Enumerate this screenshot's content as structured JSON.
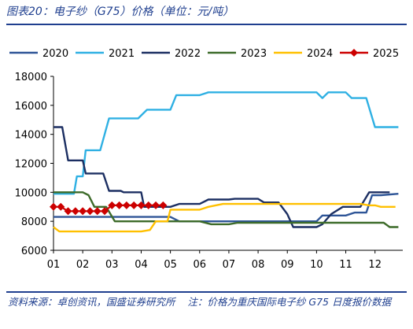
{
  "figure_title": "图表20：电子纱（G75）价格（单位：元/吨）",
  "source_text": "资料来源：卓创资讯，国盛证券研究所",
  "note_text": "注：价格为重庆国际电子纱 G75 日度报价数据",
  "chart_data": {
    "type": "line",
    "title": "图表20：电子纱（G75）价格（单位：元/吨）",
    "xlabel": "",
    "ylabel": "",
    "categories": [
      "01",
      "02",
      "03",
      "04",
      "05",
      "06",
      "07",
      "08",
      "09",
      "10",
      "11",
      "12"
    ],
    "x_tick_labels": [
      "01",
      "02",
      "03",
      "04",
      "05",
      "06",
      "07",
      "08",
      "09",
      "10",
      "11",
      "12"
    ],
    "ylim": [
      6000,
      18000
    ],
    "y_ticks": [
      6000,
      8000,
      10000,
      12000,
      14000,
      16000,
      18000
    ],
    "grid": false,
    "legend_position": "top",
    "series": [
      {
        "name": "2020",
        "color": "#2e5597",
        "marker": "none",
        "points": [
          [
            1,
            8300
          ],
          [
            1.5,
            8300
          ],
          [
            2,
            8300
          ],
          [
            3,
            8300
          ],
          [
            3.5,
            8300
          ],
          [
            4,
            8300
          ],
          [
            4.6,
            8300
          ],
          [
            5,
            8300
          ],
          [
            5.3,
            8000
          ],
          [
            6,
            8000
          ],
          [
            7,
            8000
          ],
          [
            8,
            8000
          ],
          [
            9,
            8000
          ],
          [
            9.5,
            8000
          ],
          [
            9.7,
            8000
          ],
          [
            10,
            8000
          ],
          [
            10.2,
            8400
          ],
          [
            10.6,
            8400
          ],
          [
            11,
            8400
          ],
          [
            11.3,
            8600
          ],
          [
            11.7,
            8600
          ],
          [
            11.9,
            9800
          ],
          [
            12.2,
            9800
          ],
          [
            12.8,
            9900
          ]
        ]
      },
      {
        "name": "2021",
        "color": "#2fb0e3",
        "marker": "none",
        "points": [
          [
            1,
            9900
          ],
          [
            1.7,
            9900
          ],
          [
            1.8,
            11100
          ],
          [
            2,
            11100
          ],
          [
            2.1,
            12900
          ],
          [
            2.6,
            12900
          ],
          [
            2.9,
            15100
          ],
          [
            3,
            15100
          ],
          [
            3.9,
            15100
          ],
          [
            4.2,
            15700
          ],
          [
            5,
            15700
          ],
          [
            5.2,
            16700
          ],
          [
            6,
            16700
          ],
          [
            6.3,
            16900
          ],
          [
            7,
            16900
          ],
          [
            8,
            16900
          ],
          [
            9,
            16900
          ],
          [
            10,
            16900
          ],
          [
            10.2,
            16500
          ],
          [
            10.4,
            16900
          ],
          [
            10.8,
            16900
          ],
          [
            11,
            16900
          ],
          [
            11.2,
            16500
          ],
          [
            11.7,
            16500
          ],
          [
            12,
            14500
          ],
          [
            12.8,
            14500
          ]
        ]
      },
      {
        "name": "2022",
        "color": "#1c2f62",
        "marker": "none",
        "points": [
          [
            1,
            14500
          ],
          [
            1.3,
            14500
          ],
          [
            1.5,
            12200
          ],
          [
            2,
            12200
          ],
          [
            2.1,
            11300
          ],
          [
            2.7,
            11300
          ],
          [
            2.9,
            10100
          ],
          [
            3.3,
            10100
          ],
          [
            3.4,
            10000
          ],
          [
            4,
            10000
          ],
          [
            4.1,
            9000
          ],
          [
            5,
            9000
          ],
          [
            5.3,
            9200
          ],
          [
            6,
            9200
          ],
          [
            6.3,
            9500
          ],
          [
            7,
            9500
          ],
          [
            7.2,
            9550
          ],
          [
            8,
            9550
          ],
          [
            8.2,
            9300
          ],
          [
            8.7,
            9300
          ],
          [
            9,
            8500
          ],
          [
            9.2,
            7600
          ],
          [
            10,
            7600
          ],
          [
            10.2,
            7800
          ],
          [
            10.5,
            8500
          ],
          [
            10.9,
            9000
          ],
          [
            11.2,
            9000
          ],
          [
            11.5,
            9000
          ],
          [
            11.8,
            10000
          ],
          [
            12.5,
            10000
          ]
        ]
      },
      {
        "name": "2023",
        "color": "#3d6b2a",
        "marker": "none",
        "points": [
          [
            1,
            10000
          ],
          [
            1.5,
            10000
          ],
          [
            2,
            10000
          ],
          [
            2.2,
            9800
          ],
          [
            2.4,
            9000
          ],
          [
            2.8,
            9000
          ],
          [
            3.1,
            8000
          ],
          [
            4,
            8000
          ],
          [
            5,
            8000
          ],
          [
            6,
            8000
          ],
          [
            6.4,
            7800
          ],
          [
            7,
            7800
          ],
          [
            7.3,
            7900
          ],
          [
            8,
            7900
          ],
          [
            9,
            7900
          ],
          [
            10,
            7900
          ],
          [
            11,
            7900
          ],
          [
            12,
            7900
          ],
          [
            12.3,
            7900
          ],
          [
            12.5,
            7600
          ],
          [
            12.8,
            7600
          ]
        ]
      },
      {
        "name": "2024",
        "color": "#ffc000",
        "marker": "none",
        "points": [
          [
            1,
            7600
          ],
          [
            1.2,
            7300
          ],
          [
            2,
            7300
          ],
          [
            3,
            7300
          ],
          [
            4,
            7300
          ],
          [
            4.3,
            7400
          ],
          [
            4.5,
            8000
          ],
          [
            4.9,
            8000
          ],
          [
            5,
            8800
          ],
          [
            6,
            8800
          ],
          [
            6.3,
            9000
          ],
          [
            6.8,
            9200
          ],
          [
            7,
            9200
          ],
          [
            8,
            9200
          ],
          [
            9,
            9200
          ],
          [
            10,
            9200
          ],
          [
            11,
            9200
          ],
          [
            11.5,
            9200
          ],
          [
            11.8,
            9100
          ],
          [
            12,
            9100
          ],
          [
            12.2,
            9000
          ],
          [
            12.7,
            9000
          ]
        ]
      },
      {
        "name": "2025",
        "color": "#cc0000",
        "marker": "diamond",
        "points": [
          [
            1,
            9000
          ],
          [
            1.25,
            9000
          ],
          [
            1.5,
            8700
          ],
          [
            1.75,
            8700
          ],
          [
            2,
            8700
          ],
          [
            2.25,
            8700
          ],
          [
            2.5,
            8700
          ],
          [
            2.75,
            8700
          ],
          [
            3,
            9100
          ],
          [
            3.25,
            9100
          ],
          [
            3.5,
            9100
          ],
          [
            3.75,
            9100
          ],
          [
            4,
            9100
          ],
          [
            4.25,
            9100
          ],
          [
            4.5,
            9100
          ],
          [
            4.75,
            9100
          ]
        ]
      }
    ]
  }
}
